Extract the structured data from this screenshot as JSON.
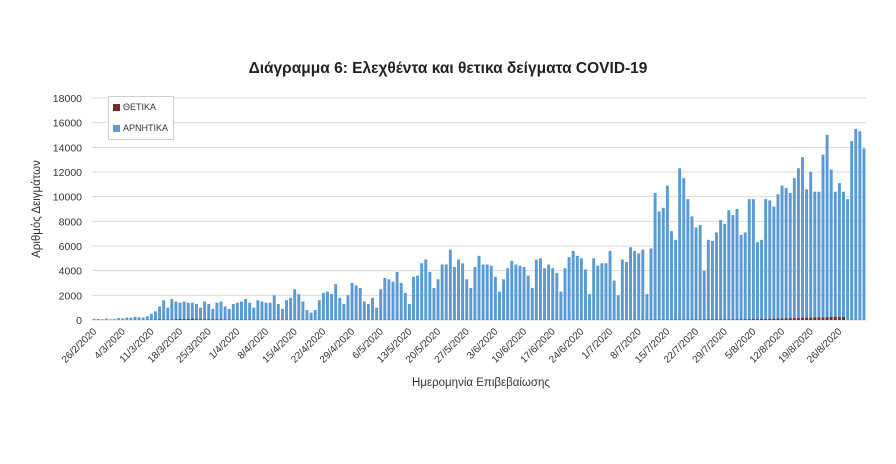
{
  "chart_data": {
    "type": "bar",
    "title": "Διάγραμμα 6: Ελεχθέντα και θετικα δείγματα COVID-19",
    "xlabel": "Ημερομηνία Επιβεβαίωσης",
    "ylabel": "Αριθμός Δειγμάτων",
    "ylim": [
      0,
      18000
    ],
    "yticks": [
      0,
      2000,
      4000,
      6000,
      8000,
      10000,
      12000,
      14000,
      16000,
      18000
    ],
    "grid": true,
    "legend_position": "top-left",
    "start_date": "2020-02-26",
    "x_tick_labels": [
      "26/2/2020",
      "4/3/2020",
      "11/3/2020",
      "18/3/2020",
      "25/3/2020",
      "1/4/2020",
      "8/4/2020",
      "15/4/2020",
      "22/4/2020",
      "29/4/2020",
      "6/5/2020",
      "13/5/2020",
      "20/5/2020",
      "27/5/2020",
      "3/6/2020",
      "10/6/2020",
      "17/6/2020",
      "24/6/2020",
      "1/7/2020",
      "8/7/2020",
      "15/7/2020",
      "22/7/2020",
      "29/7/2020",
      "5/8/2020",
      "12/8/2020",
      "19/8/2020",
      "26/8/2020"
    ],
    "series": [
      {
        "name": "ΘΕΤΙΚΑ",
        "color": "#7b2a2a",
        "values": [
          0,
          0,
          0,
          0,
          0,
          0,
          0,
          0,
          0,
          0,
          0,
          0,
          5,
          10,
          20,
          30,
          40,
          30,
          30,
          40,
          60,
          80,
          70,
          70,
          100,
          60,
          60,
          50,
          50,
          50,
          40,
          40,
          30,
          25,
          30,
          20,
          25,
          20,
          20,
          15,
          20,
          15,
          15,
          15,
          20,
          15,
          15,
          10,
          10,
          10,
          10,
          10,
          10,
          10,
          10,
          10,
          10,
          10,
          10,
          10,
          10,
          10,
          10,
          10,
          10,
          10,
          10,
          10,
          10,
          10,
          10,
          10,
          10,
          10,
          10,
          10,
          10,
          10,
          10,
          10,
          10,
          10,
          10,
          10,
          10,
          10,
          10,
          10,
          10,
          10,
          10,
          10,
          10,
          10,
          10,
          10,
          10,
          10,
          10,
          10,
          10,
          10,
          10,
          10,
          10,
          10,
          10,
          10,
          10,
          10,
          10,
          10,
          10,
          10,
          10,
          10,
          10,
          10,
          10,
          10,
          10,
          10,
          10,
          10,
          10,
          10,
          10,
          10,
          10,
          10,
          10,
          10,
          10,
          10,
          15,
          15,
          20,
          20,
          20,
          20,
          20,
          25,
          30,
          30,
          25,
          30,
          30,
          30,
          30,
          35,
          40,
          40,
          40,
          40,
          40,
          45,
          45,
          50,
          50,
          60,
          60,
          70,
          70,
          80,
          80,
          90,
          100,
          110,
          120,
          130,
          140,
          150,
          150,
          160,
          180,
          180,
          200,
          220,
          200,
          230,
          250,
          260,
          230,
          240
        ]
      },
      {
        "name": "ΑΡΝΗΤΙΚΑ",
        "color": "#5b9bd5",
        "values": [
          100,
          80,
          60,
          120,
          50,
          70,
          150,
          130,
          200,
          180,
          250,
          220,
          200,
          300,
          500,
          700,
          1100,
          1600,
          1000,
          1700,
          1500,
          1400,
          1500,
          1400,
          1400,
          1300,
          1000,
          1500,
          1300,
          900,
          1400,
          1500,
          1100,
          900,
          1300,
          1400,
          1500,
          1700,
          1400,
          1000,
          1600,
          1500,
          1400,
          1400,
          2000,
          1300,
          900,
          1600,
          1800,
          2500,
          2100,
          1500,
          800,
          600,
          800,
          1600,
          2200,
          2300,
          2100,
          2900,
          1800,
          1300,
          2000,
          3000,
          2800,
          2600,
          1500,
          1300,
          1800,
          1000,
          2500,
          3400,
          3300,
          3100,
          3900,
          3000,
          2200,
          1300,
          3500,
          3600,
          4600,
          4900,
          3900,
          2600,
          3300,
          4500,
          4500,
          5700,
          4300,
          4900,
          4600,
          3300,
          2600,
          4300,
          5200,
          4500,
          4500,
          4400,
          3500,
          2300,
          3300,
          4200,
          4800,
          4500,
          4400,
          4300,
          3600,
          2600,
          4900,
          5000,
          4200,
          4500,
          4200,
          3800,
          2300,
          4200,
          5100,
          5600,
          5200,
          5000,
          4100,
          2100,
          5000,
          4400,
          4600,
          4600,
          5600,
          3200,
          2000,
          4900,
          4700,
          5900,
          5600,
          5400,
          5700,
          2100,
          5800,
          10300,
          8800,
          9100,
          10900,
          7200,
          6500,
          12300,
          11500,
          9800,
          8400,
          7500,
          7700,
          4000,
          6500,
          6400,
          7100,
          8100,
          7800,
          8900,
          8500,
          9000,
          6900,
          7100,
          9800,
          9800,
          6300,
          6500,
          9800,
          9700,
          9200,
          10200,
          10900,
          10700,
          10300,
          11500,
          12300,
          13200,
          10600,
          12000,
          10400,
          10400,
          13400,
          15000,
          12200,
          10400,
          11100,
          10400,
          9800,
          14500,
          15500,
          15300,
          13900
        ]
      }
    ]
  }
}
